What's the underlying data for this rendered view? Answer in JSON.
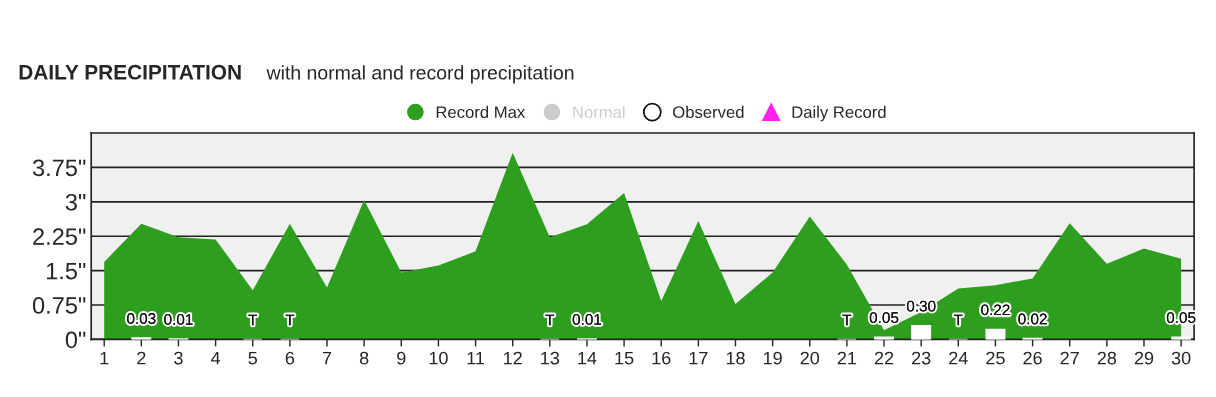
{
  "chart_data": {
    "type": "area",
    "title": "DAILY PRECIPITATION",
    "subtitle": "with normal and record precipitation",
    "categories": [
      "1",
      "2",
      "3",
      "4",
      "5",
      "6",
      "7",
      "8",
      "9",
      "10",
      "11",
      "12",
      "13",
      "14",
      "15",
      "16",
      "17",
      "18",
      "19",
      "20",
      "21",
      "22",
      "23",
      "24",
      "25",
      "26",
      "27",
      "28",
      "29",
      "30"
    ],
    "series": [
      {
        "name": "Record Max",
        "color": "#2e9e1e",
        "values": [
          1.69,
          2.52,
          2.23,
          2.18,
          1.07,
          2.52,
          1.13,
          3.04,
          1.46,
          1.61,
          1.92,
          4.07,
          2.23,
          2.51,
          3.19,
          0.84,
          2.58,
          0.77,
          1.46,
          2.68,
          1.63,
          0.2,
          0.6,
          1.11,
          1.18,
          1.33,
          2.53,
          1.65,
          1.98,
          1.76
        ]
      },
      {
        "name": "Normal",
        "type": "line",
        "color": "#cccccc",
        "values": [
          null,
          null,
          null,
          null,
          null,
          null,
          null,
          null,
          null,
          null,
          null,
          null,
          null,
          null,
          null,
          null,
          null,
          null,
          null,
          null,
          null,
          null,
          null,
          null,
          null,
          null,
          null,
          null,
          null,
          null
        ]
      },
      {
        "name": "Observed",
        "type": "bar",
        "color": "#ffffff",
        "values": [
          null,
          0.03,
          0.01,
          null,
          0,
          0,
          null,
          null,
          null,
          null,
          null,
          null,
          0,
          0.01,
          null,
          null,
          null,
          null,
          null,
          null,
          0,
          0.05,
          0.3,
          0,
          0.22,
          0.02,
          null,
          null,
          null,
          0.05
        ],
        "value_labels": [
          null,
          "0.03",
          "0.01",
          null,
          "T",
          "T",
          null,
          null,
          null,
          null,
          null,
          null,
          "T",
          "0.01",
          null,
          null,
          null,
          null,
          null,
          null,
          "T",
          "0.05",
          "0.30",
          "T",
          "0.22",
          "0.02",
          null,
          null,
          null,
          "0.05"
        ]
      },
      {
        "name": "Daily Record",
        "type": "scatter",
        "marker": "triangle",
        "color": "#ff22ee",
        "values": [
          null,
          null,
          null,
          null,
          null,
          null,
          null,
          null,
          null,
          null,
          null,
          null,
          null,
          null,
          null,
          null,
          null,
          null,
          null,
          null,
          null,
          null,
          null,
          null,
          null,
          null,
          null,
          null,
          null,
          null
        ]
      }
    ],
    "ylim": [
      0,
      4.5
    ],
    "yticks": [
      {
        "value": 0,
        "label": "0\""
      },
      {
        "value": 0.75,
        "label": "0.75\""
      },
      {
        "value": 1.5,
        "label": "1.5\""
      },
      {
        "value": 2.25,
        "label": "2.25\""
      },
      {
        "value": 3,
        "label": "3\""
      },
      {
        "value": 3.75,
        "label": "3.75\""
      }
    ],
    "grid": "y",
    "legend": "top"
  }
}
